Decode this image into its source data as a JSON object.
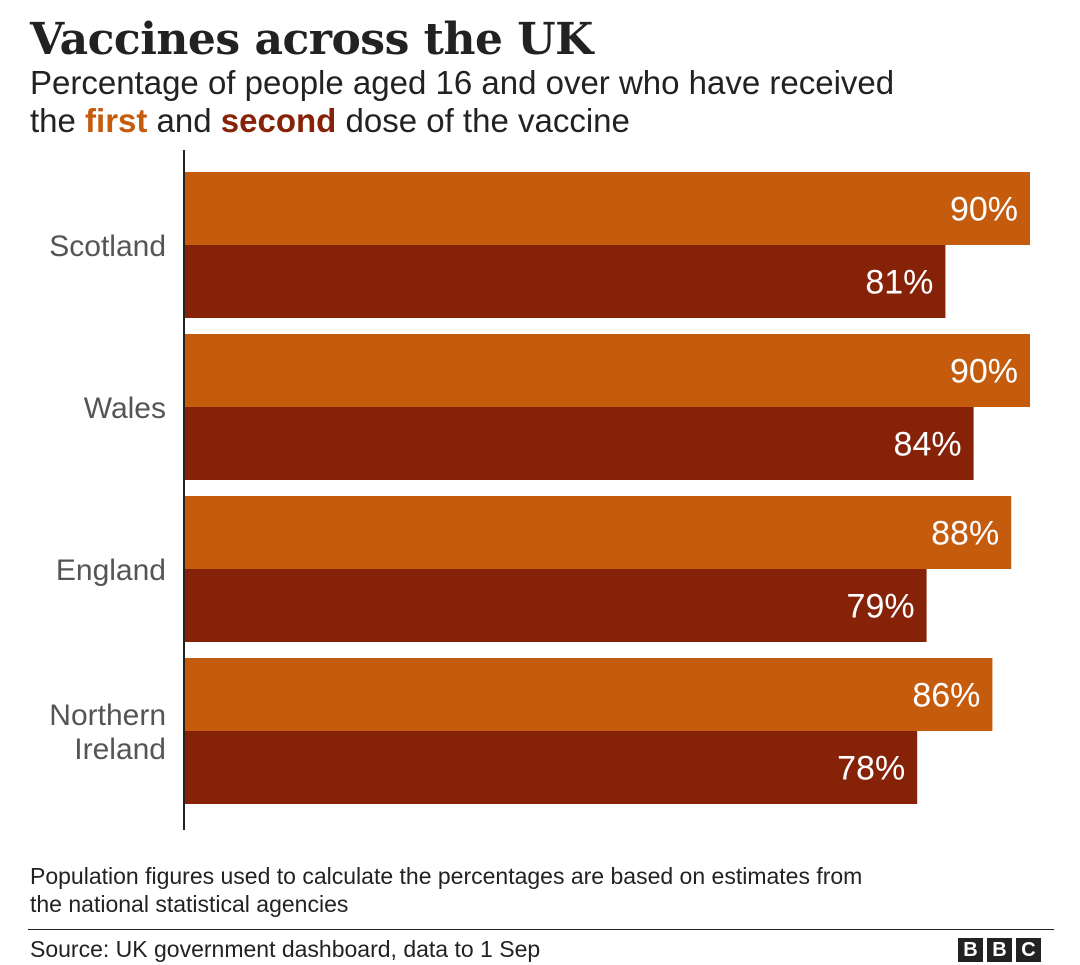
{
  "chart_data": {
    "type": "bar",
    "orientation": "horizontal",
    "title": "Vaccines across the UK",
    "subtitle": {
      "line1": "Percentage of people aged 16 and over who have received",
      "prefix": "the ",
      "first": "first",
      "middle": " and ",
      "second": "second",
      "suffix": " dose of the vaccine"
    },
    "categories": [
      "Scotland",
      "Wales",
      "England",
      "Northern Ireland"
    ],
    "category_lines": [
      [
        "Scotland"
      ],
      [
        "Wales"
      ],
      [
        "England"
      ],
      [
        "Northern",
        "Ireland"
      ]
    ],
    "series": [
      {
        "name": "first",
        "color": "#c45b0d",
        "values": [
          90,
          90,
          88,
          86
        ],
        "labels": [
          "90%",
          "90%",
          "88%",
          "86%"
        ]
      },
      {
        "name": "second",
        "color": "#862208",
        "values": [
          81,
          84,
          79,
          78
        ],
        "labels": [
          "81%",
          "84%",
          "79%",
          "78%"
        ]
      }
    ],
    "xlim": [
      0,
      90
    ],
    "grid": false,
    "legend": "inline-subtitle"
  },
  "footer": {
    "note_line1": "Population figures used to calculate the percentages are based on estimates from",
    "note_line2": "the national statistical agencies",
    "source": "Source: UK government dashboard, data to 1 Sep",
    "logo_letters": [
      "B",
      "B",
      "C"
    ]
  }
}
